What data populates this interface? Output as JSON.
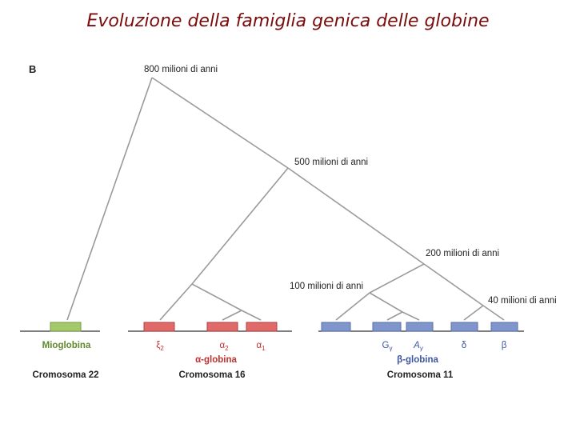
{
  "title": "Evoluzione della famiglia genica delle globine",
  "panel_label": "B",
  "nodes": [
    {
      "label": "800 milioni di anni"
    },
    {
      "label": "500 milioni di anni"
    },
    {
      "label": "200 milioni di anni"
    },
    {
      "label": "100 milioni di anni"
    },
    {
      "label": "40 milioni di anni"
    }
  ],
  "myoglobin": "Mioglobina",
  "genes": [
    {
      "symbol": "ξ",
      "sub": "2"
    },
    {
      "symbol": "α",
      "sub": "2"
    },
    {
      "symbol": "α",
      "sub": "1"
    },
    {
      "symbol": "G",
      "sub": "γ"
    },
    {
      "symbol": "A",
      "sub": "γ"
    },
    {
      "symbol": "δ"
    },
    {
      "symbol": "β"
    }
  ],
  "families": [
    "α-globina",
    "β-globina"
  ],
  "chromosomes": [
    "Cromosoma 22",
    "Cromosoma 16",
    "Cromosoma 11"
  ]
}
